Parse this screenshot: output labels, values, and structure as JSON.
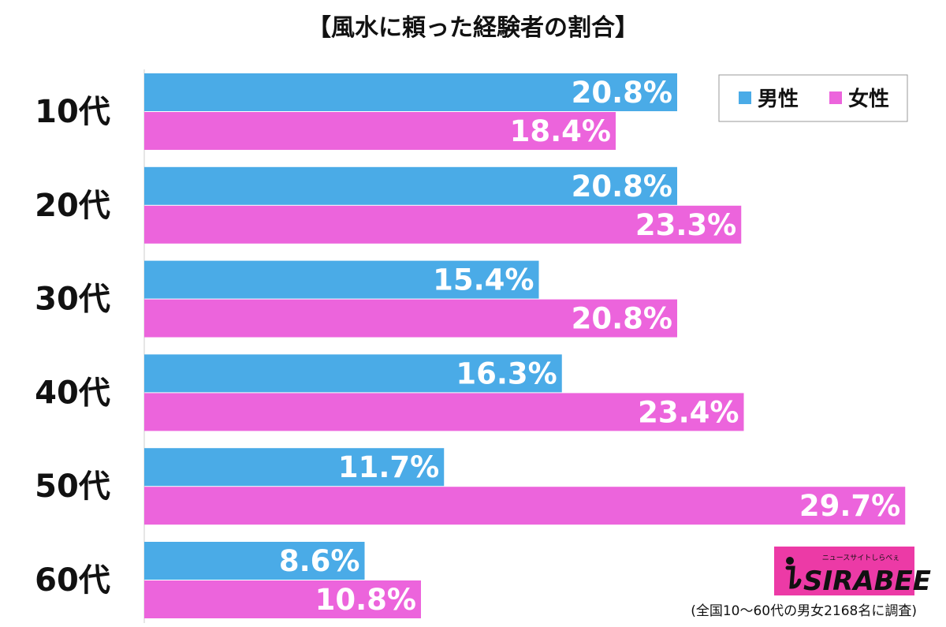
{
  "chart_data": {
    "type": "bar",
    "orientation": "horizontal",
    "title": "【風水に頼った経験者の割合】",
    "categories": [
      "10代",
      "20代",
      "30代",
      "40代",
      "50代",
      "60代"
    ],
    "series": [
      {
        "name": "男性",
        "color": "#4aabe7",
        "values": [
          20.8,
          20.8,
          15.4,
          16.3,
          11.7,
          8.6
        ],
        "labels": [
          "20.8%",
          "20.8%",
          "15.4%",
          "16.3%",
          "11.7%",
          "8.6%"
        ]
      },
      {
        "name": "女性",
        "color": "#ec64dc",
        "values": [
          18.4,
          23.3,
          20.8,
          23.4,
          29.7,
          10.8
        ],
        "labels": [
          "18.4%",
          "23.3%",
          "20.8%",
          "23.4%",
          "29.7%",
          "10.8%"
        ]
      }
    ],
    "xlim": [
      0,
      30
    ],
    "grid": false,
    "legend": "top-right",
    "note": "(全国10〜60代の男女2168名に調査)"
  },
  "logo": {
    "tagline": "ニュースサイトしらべぇ",
    "name": "SIRABEE",
    "color": "#ec3aa6"
  }
}
